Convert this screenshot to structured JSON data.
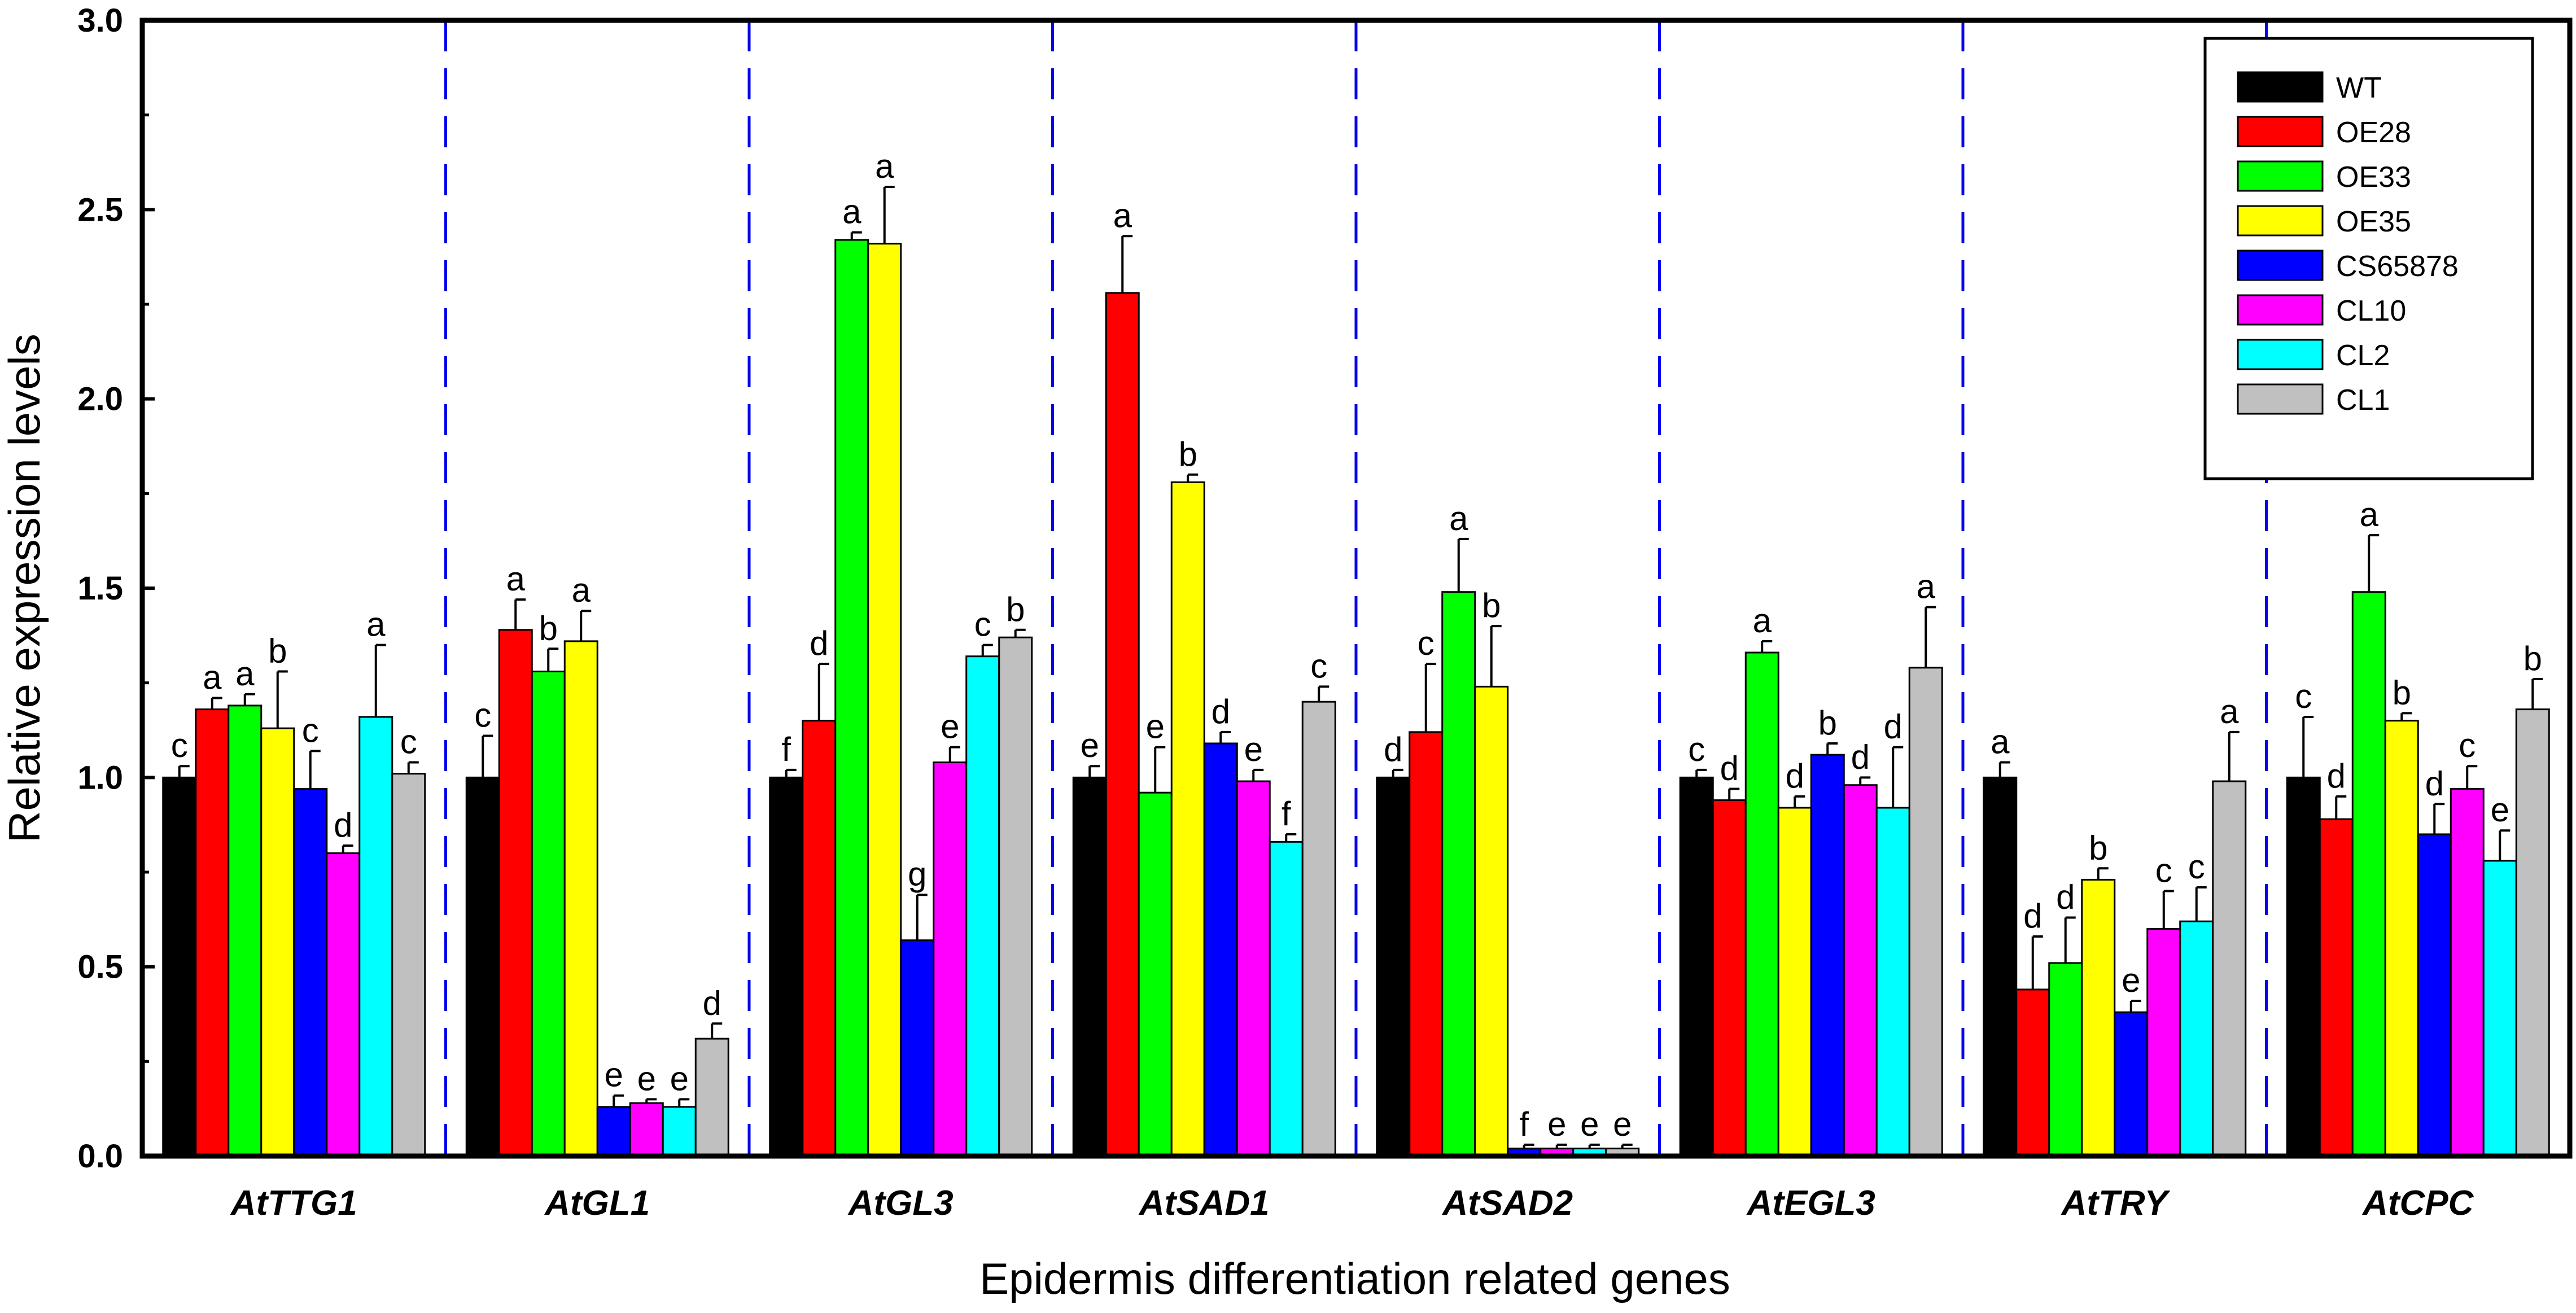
{
  "chart_data": {
    "type": "bar",
    "title": "",
    "xlabel": "Epidermis differentiation related genes",
    "ylabel": "Relative expression levels",
    "ylim": [
      0,
      3.0
    ],
    "yticks": [
      "0.0",
      "0.5",
      "1.0",
      "1.5",
      "2.0",
      "2.5",
      "3.0"
    ],
    "grid": false,
    "legend_position": "top-right",
    "categories": [
      "AtTTG1",
      "AtGL1",
      "AtGL3",
      "AtSAD1",
      "AtSAD2",
      "AtEGL3",
      "AtTRY",
      "AtCPC"
    ],
    "series": [
      {
        "name": "WT",
        "color": "#000000",
        "values": [
          1.0,
          1.0,
          1.0,
          1.0,
          1.0,
          1.0,
          1.0,
          1.0
        ],
        "errors": [
          0.03,
          0.11,
          0.02,
          0.03,
          0.02,
          0.02,
          0.04,
          0.16
        ],
        "letters": [
          "c",
          "c",
          "f",
          "e",
          "d",
          "c",
          "a",
          "c"
        ]
      },
      {
        "name": "OE28",
        "color": "#ff0000",
        "values": [
          1.18,
          1.39,
          1.15,
          2.28,
          1.12,
          0.94,
          0.44,
          0.89
        ],
        "errors": [
          0.03,
          0.08,
          0.15,
          0.15,
          0.18,
          0.03,
          0.14,
          0.06
        ],
        "letters": [
          "a",
          "a",
          "d",
          "a",
          "c",
          "d",
          "d",
          "d"
        ]
      },
      {
        "name": "OE33",
        "color": "#00ff00",
        "values": [
          1.19,
          1.28,
          2.42,
          0.96,
          1.49,
          1.33,
          0.51,
          1.49
        ],
        "errors": [
          0.03,
          0.06,
          0.02,
          0.12,
          0.14,
          0.03,
          0.12,
          0.15
        ],
        "letters": [
          "a",
          "b",
          "a",
          "e",
          "a",
          "a",
          "d",
          "a"
        ]
      },
      {
        "name": "OE35",
        "color": "#ffff00",
        "values": [
          1.13,
          1.36,
          2.41,
          1.78,
          1.24,
          0.92,
          0.73,
          1.15
        ],
        "errors": [
          0.15,
          0.08,
          0.15,
          0.02,
          0.16,
          0.03,
          0.03,
          0.02
        ],
        "letters": [
          "b",
          "a",
          "a",
          "b",
          "b",
          "d",
          "b",
          "b"
        ]
      },
      {
        "name": "CS65878",
        "color": "#0000ff",
        "values": [
          0.97,
          0.13,
          0.57,
          1.09,
          0.02,
          1.06,
          0.38,
          0.85
        ],
        "errors": [
          0.1,
          0.03,
          0.12,
          0.03,
          0.01,
          0.03,
          0.03,
          0.08
        ],
        "letters": [
          "c",
          "e",
          "g",
          "d",
          "f",
          "b",
          "e",
          "d"
        ]
      },
      {
        "name": "CL10",
        "color": "#ff00ff",
        "values": [
          0.8,
          0.14,
          1.04,
          0.99,
          0.02,
          0.98,
          0.6,
          0.97
        ],
        "errors": [
          0.02,
          0.01,
          0.04,
          0.03,
          0.01,
          0.02,
          0.1,
          0.06
        ],
        "letters": [
          "d",
          "e",
          "e",
          "e",
          "e",
          "d",
          "c",
          "c"
        ]
      },
      {
        "name": "CL2",
        "color": "#00ffff",
        "values": [
          1.16,
          0.13,
          1.32,
          0.83,
          0.02,
          0.92,
          0.62,
          0.78
        ],
        "errors": [
          0.19,
          0.02,
          0.03,
          0.02,
          0.01,
          0.16,
          0.09,
          0.08
        ],
        "letters": [
          "a",
          "e",
          "c",
          "f",
          "e",
          "d",
          "c",
          "e"
        ]
      },
      {
        "name": "CL1",
        "color": "#c0c0c0",
        "values": [
          1.01,
          0.31,
          1.37,
          1.2,
          0.02,
          1.29,
          0.99,
          1.18
        ],
        "errors": [
          0.03,
          0.04,
          0.02,
          0.04,
          0.01,
          0.16,
          0.13,
          0.08
        ],
        "letters": [
          "c",
          "d",
          "b",
          "c",
          "e",
          "a",
          "a",
          "b"
        ]
      }
    ]
  }
}
